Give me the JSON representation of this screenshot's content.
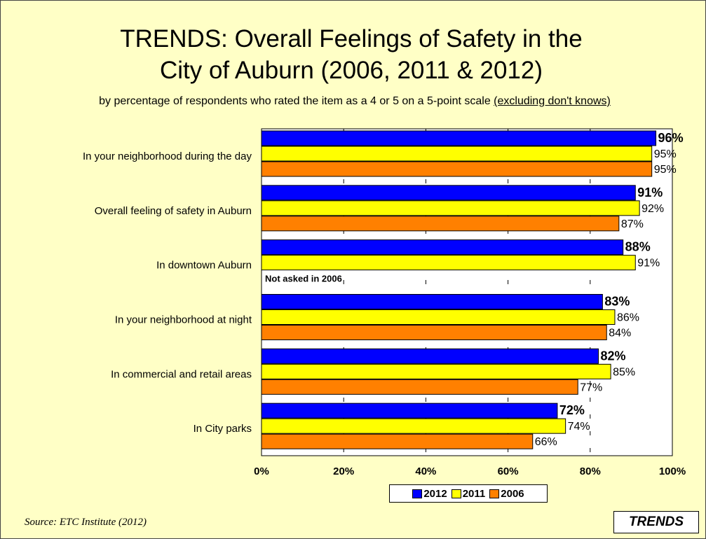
{
  "title_line1": "TRENDS:  Overall Feelings of Safety in the",
  "title_line2": "City of Auburn (2006, 2011 & 2012)",
  "subtitle_text": "by percentage of respondents who rated the item as a 4 or 5 on a 5-point scale ",
  "subtitle_underlined": "(excluding don't knows)",
  "source": "Source:  ETC Institute (2012)",
  "trends_label": "TRENDS",
  "not_asked_note": "Not asked in 2006",
  "colors": {
    "2012": "#0000ff",
    "2011": "#ffff00",
    "2006": "#ff8000",
    "plot_bg": "#ffffff"
  },
  "chart_data": {
    "type": "bar",
    "orientation": "horizontal",
    "categories": [
      "In your neighborhood during the day",
      "Overall feeling of safety in Auburn",
      "In downtown Auburn",
      "In your neighborhood at night",
      "In commercial and retail areas",
      "In City parks"
    ],
    "series": [
      {
        "name": "2012",
        "values": [
          96,
          91,
          88,
          83,
          82,
          72
        ],
        "labels": [
          "96%",
          "91%",
          "88%",
          "83%",
          "82%",
          "72%"
        ]
      },
      {
        "name": "2011",
        "values": [
          95,
          92,
          91,
          86,
          85,
          74
        ],
        "labels": [
          "95%",
          "92%",
          "91%",
          "86%",
          "85%",
          "74%"
        ]
      },
      {
        "name": "2006",
        "values": [
          95,
          87,
          null,
          84,
          77,
          66
        ],
        "labels": [
          "95%",
          "87%",
          "",
          "84%",
          "77%",
          "66%"
        ]
      }
    ],
    "xlim": [
      0,
      100
    ],
    "x_ticks": [
      "0%",
      "20%",
      "40%",
      "60%",
      "80%",
      "100%"
    ],
    "grid": true,
    "legend_position": "bottom"
  }
}
